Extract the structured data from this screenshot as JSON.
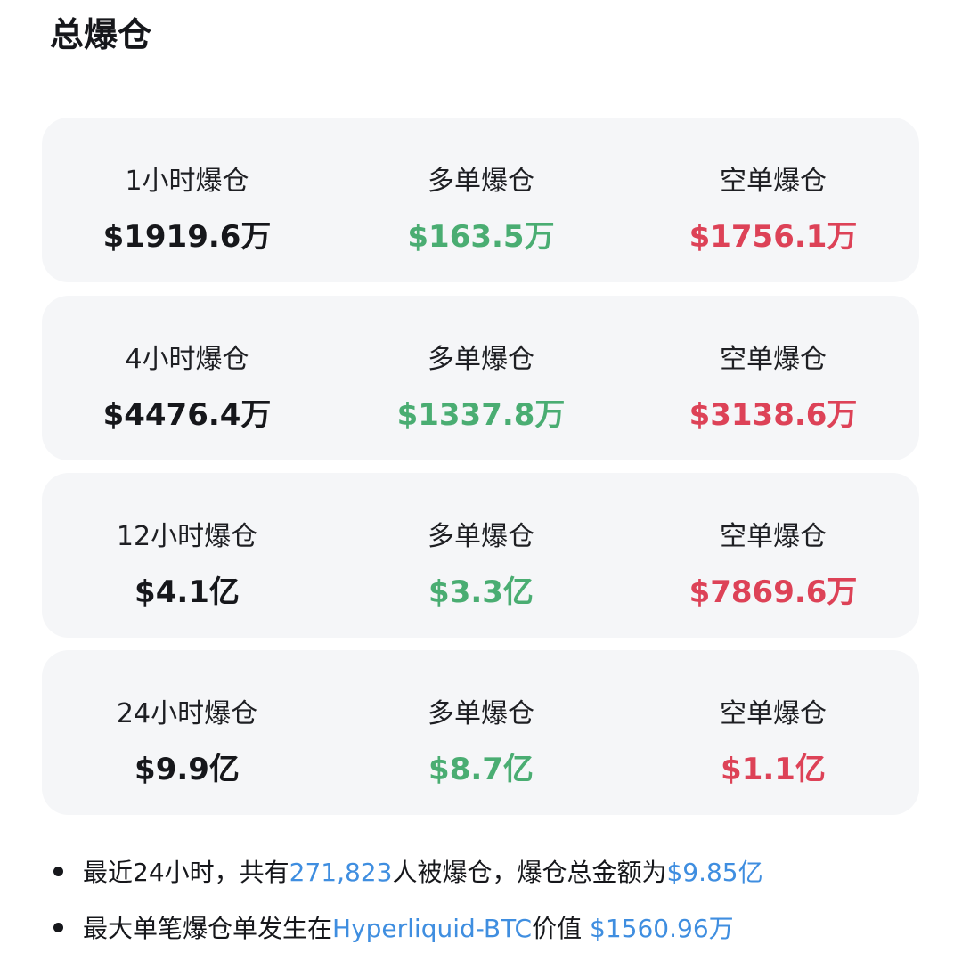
{
  "title": "总爆仓",
  "colors": {
    "long": "#4aad72",
    "short": "#dd4257",
    "highlight": "#3f8ee0"
  },
  "rows": [
    {
      "period_label": "1小时爆仓",
      "total": "$1919.6万",
      "long_label": "多单爆仓",
      "long": "$163.5万",
      "short_label": "空单爆仓",
      "short": "$1756.1万"
    },
    {
      "period_label": "4小时爆仓",
      "total": "$4476.4万",
      "long_label": "多单爆仓",
      "long": "$1337.8万",
      "short_label": "空单爆仓",
      "short": "$3138.6万"
    },
    {
      "period_label": "12小时爆仓",
      "total": "$4.1亿",
      "long_label": "多单爆仓",
      "long": "$3.3亿",
      "short_label": "空单爆仓",
      "short": "$7869.6万"
    },
    {
      "period_label": "24小时爆仓",
      "total": "$9.9亿",
      "long_label": "多单爆仓",
      "long": "$8.7亿",
      "short_label": "空单爆仓",
      "short": "$1.1亿"
    }
  ],
  "notes": [
    {
      "p1": "最近24小时，共有",
      "h1": "271,823",
      "p2": "人被爆仓，爆仓总金额为",
      "h2": "$9.85亿"
    },
    {
      "p1": "最大单笔爆仓单发生在",
      "h1": "Hyperliquid-BTC",
      "p2": "价值 ",
      "h2": "$1560.96万"
    }
  ]
}
